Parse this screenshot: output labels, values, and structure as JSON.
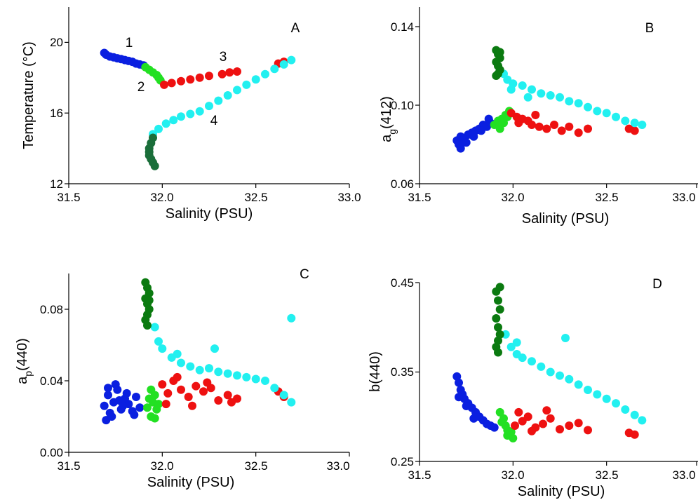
{
  "colors": {
    "blue": "#0a1fe0",
    "lightgreen": "#22e022",
    "red": "#ee1111",
    "cyan": "#22f0f0",
    "darkgreen": "#1a6e3a",
    "forest": "#0b7a10"
  },
  "chart_data": [
    {
      "type": "scatter",
      "panel_label": "A",
      "xlabel": "Salinity (PSU)",
      "ylabel": "Temperature (°C)",
      "xlim": [
        31.5,
        33.0
      ],
      "ylim": [
        12,
        22
      ],
      "xticks": [
        "31.5",
        "32.0",
        "32.5",
        "33.0"
      ],
      "yticks": [
        "12",
        "16",
        "20"
      ],
      "grid": false,
      "annotations": [
        {
          "text": "1",
          "x": 31.83,
          "y": 20.0
        },
        {
          "text": "2",
          "x": 31.88,
          "y": 17.5
        },
        {
          "text": "3",
          "x": 32.39,
          "y": 19.2
        },
        {
          "text": "4",
          "x": 32.29,
          "y": 15.5
        }
      ],
      "groups": [
        {
          "color": "blue",
          "x": [
            31.69,
            31.7,
            31.72,
            31.74,
            31.76,
            31.78,
            31.8,
            31.82,
            31.84,
            31.86,
            31.88,
            31.9
          ],
          "y": [
            19.4,
            19.3,
            19.2,
            19.15,
            19.1,
            19.05,
            19.0,
            18.95,
            18.9,
            18.8,
            18.75,
            18.7
          ]
        },
        {
          "color": "lightgreen",
          "x": [
            31.91,
            31.93,
            31.95,
            31.97,
            31.98,
            31.99
          ],
          "y": [
            18.6,
            18.45,
            18.3,
            18.15,
            18.0,
            17.85
          ]
        },
        {
          "color": "red",
          "x": [
            32.01,
            32.05,
            32.1,
            32.15,
            32.2,
            32.25,
            32.32,
            32.36,
            32.4,
            32.62,
            32.65
          ],
          "y": [
            17.6,
            17.7,
            17.8,
            17.9,
            18.0,
            18.1,
            18.2,
            18.3,
            18.35,
            18.8,
            18.9
          ]
        },
        {
          "color": "cyan",
          "x": [
            31.95,
            31.98,
            32.02,
            32.06,
            32.1,
            32.15,
            32.2,
            32.25,
            32.3,
            32.35,
            32.4,
            32.45,
            32.5,
            32.55,
            32.6,
            32.65,
            32.69
          ],
          "y": [
            14.8,
            15.1,
            15.4,
            15.6,
            15.8,
            15.95,
            16.1,
            16.4,
            16.7,
            17.0,
            17.3,
            17.6,
            17.9,
            18.2,
            18.5,
            18.75,
            19.0
          ]
        },
        {
          "color": "darkgreen",
          "x": [
            31.95,
            31.94,
            31.93,
            31.93,
            31.93,
            31.94,
            31.95,
            31.96
          ],
          "y": [
            14.6,
            14.3,
            14.0,
            13.8,
            13.6,
            13.4,
            13.2,
            13.0
          ]
        }
      ]
    },
    {
      "type": "scatter",
      "panel_label": "B",
      "xlabel": "Salinity (PSU)",
      "ylabel_main": "a",
      "ylabel_sub": "g",
      "ylabel_rest": "(412)",
      "xlim": [
        31.5,
        33.0
      ],
      "ylim": [
        0.06,
        0.15
      ],
      "xticks": [
        "31.5",
        "32.0",
        "32.5",
        "33.0"
      ],
      "yticks": [
        "0.06",
        "0.10",
        "0.14"
      ],
      "grid": false,
      "groups": [
        {
          "color": "blue",
          "x": [
            31.7,
            31.71,
            31.72,
            31.74,
            31.76,
            31.78,
            31.8,
            31.82,
            31.84,
            31.86,
            31.88,
            31.72,
            31.75,
            31.79,
            31.83,
            31.87
          ],
          "y": [
            0.082,
            0.08,
            0.084,
            0.083,
            0.085,
            0.086,
            0.087,
            0.088,
            0.09,
            0.089,
            0.091,
            0.078,
            0.081,
            0.084,
            0.087,
            0.093
          ]
        },
        {
          "color": "lightgreen",
          "x": [
            31.9,
            31.92,
            31.93,
            31.94,
            31.95,
            31.96,
            31.97,
            31.98
          ],
          "y": [
            0.09,
            0.092,
            0.088,
            0.093,
            0.091,
            0.095,
            0.094,
            0.097
          ]
        },
        {
          "color": "red",
          "x": [
            31.99,
            32.02,
            32.05,
            32.08,
            32.1,
            32.14,
            32.18,
            32.22,
            32.26,
            32.3,
            32.35,
            32.4,
            32.62,
            32.65,
            32.03,
            32.12
          ],
          "y": [
            0.096,
            0.094,
            0.093,
            0.092,
            0.09,
            0.089,
            0.088,
            0.09,
            0.087,
            0.089,
            0.086,
            0.088,
            0.088,
            0.087,
            0.091,
            0.095
          ]
        },
        {
          "color": "cyan",
          "x": [
            31.95,
            31.97,
            32.0,
            32.05,
            32.1,
            32.15,
            32.2,
            32.25,
            32.3,
            32.35,
            32.4,
            32.45,
            32.5,
            32.55,
            32.6,
            32.65,
            32.69,
            31.99,
            32.08
          ],
          "y": [
            0.116,
            0.113,
            0.111,
            0.11,
            0.108,
            0.106,
            0.105,
            0.104,
            0.102,
            0.101,
            0.099,
            0.097,
            0.096,
            0.094,
            0.092,
            0.091,
            0.09,
            0.108,
            0.104
          ]
        },
        {
          "color": "forest",
          "x": [
            31.91,
            31.92,
            31.93,
            31.91,
            31.92,
            31.93,
            31.92,
            31.93,
            31.91
          ],
          "y": [
            0.128,
            0.126,
            0.124,
            0.122,
            0.12,
            0.118,
            0.116,
            0.127,
            0.115
          ]
        }
      ]
    },
    {
      "type": "scatter",
      "panel_label": "C",
      "xlabel": "Salinity (PSU)",
      "ylabel_main": "a",
      "ylabel_sub": "p",
      "ylabel_rest": "(440)",
      "xlim": [
        31.5,
        33.0
      ],
      "ylim": [
        0.0,
        0.1
      ],
      "xticks": [
        "31.5",
        "32.0",
        "32.5",
        "33.0"
      ],
      "yticks": [
        "0.00",
        "0.04",
        "0.08"
      ],
      "grid": false,
      "groups": [
        {
          "color": "blue",
          "x": [
            31.69,
            31.7,
            31.71,
            31.72,
            31.74,
            31.76,
            31.78,
            31.8,
            31.82,
            31.84,
            31.86,
            31.88,
            31.71,
            31.73,
            31.77,
            31.81,
            31.85,
            31.75,
            31.79
          ],
          "y": [
            0.026,
            0.018,
            0.032,
            0.022,
            0.028,
            0.035,
            0.024,
            0.03,
            0.027,
            0.023,
            0.031,
            0.025,
            0.036,
            0.02,
            0.029,
            0.033,
            0.021,
            0.038,
            0.026
          ]
        },
        {
          "color": "lightgreen",
          "x": [
            31.92,
            31.93,
            31.94,
            31.95,
            31.96,
            31.97,
            31.98,
            31.94,
            31.96
          ],
          "y": [
            0.025,
            0.03,
            0.02,
            0.028,
            0.032,
            0.024,
            0.027,
            0.035,
            0.019
          ]
        },
        {
          "color": "red",
          "x": [
            32.0,
            32.03,
            32.06,
            32.1,
            32.14,
            32.18,
            32.22,
            32.26,
            32.3,
            32.35,
            32.4,
            32.62,
            32.65,
            32.02,
            32.08,
            32.16,
            32.24,
            32.37
          ],
          "y": [
            0.038,
            0.033,
            0.04,
            0.035,
            0.031,
            0.037,
            0.034,
            0.036,
            0.029,
            0.032,
            0.03,
            0.034,
            0.031,
            0.027,
            0.042,
            0.026,
            0.039,
            0.028
          ]
        },
        {
          "color": "cyan",
          "x": [
            31.96,
            31.98,
            32.0,
            32.05,
            32.1,
            32.15,
            32.2,
            32.25,
            32.3,
            32.35,
            32.4,
            32.45,
            32.5,
            32.55,
            32.6,
            32.65,
            32.69,
            32.69,
            32.28,
            32.08
          ],
          "y": [
            0.07,
            0.062,
            0.058,
            0.053,
            0.05,
            0.048,
            0.046,
            0.047,
            0.045,
            0.044,
            0.043,
            0.042,
            0.041,
            0.04,
            0.036,
            0.032,
            0.028,
            0.075,
            0.058,
            0.055
          ]
        },
        {
          "color": "forest",
          "x": [
            31.91,
            31.92,
            31.93,
            31.91,
            31.92,
            31.93,
            31.92,
            31.91,
            31.93,
            31.92
          ],
          "y": [
            0.095,
            0.092,
            0.089,
            0.086,
            0.083,
            0.08,
            0.077,
            0.074,
            0.085,
            0.071
          ]
        }
      ]
    },
    {
      "type": "scatter",
      "panel_label": "D",
      "xlabel": "Salinity (PSU)",
      "ylabel": "b(440)",
      "xlim": [
        31.5,
        33.0
      ],
      "ylim": [
        0.25,
        0.45
      ],
      "xticks": [
        "31.5",
        "32.0",
        "32.5",
        "33.0"
      ],
      "yticks": [
        "0.25",
        "0.35",
        "0.45"
      ],
      "grid": false,
      "groups": [
        {
          "color": "blue",
          "x": [
            31.7,
            31.71,
            31.72,
            31.73,
            31.74,
            31.76,
            31.78,
            31.8,
            31.82,
            31.84,
            31.86,
            31.88,
            31.9,
            31.71,
            31.75,
            31.79
          ],
          "y": [
            0.345,
            0.338,
            0.33,
            0.325,
            0.32,
            0.315,
            0.31,
            0.305,
            0.3,
            0.296,
            0.292,
            0.29,
            0.288,
            0.322,
            0.312,
            0.298
          ]
        },
        {
          "color": "lightgreen",
          "x": [
            31.93,
            31.95,
            31.96,
            31.97,
            31.98,
            31.99,
            32.0,
            31.94,
            31.97
          ],
          "y": [
            0.305,
            0.298,
            0.29,
            0.285,
            0.28,
            0.283,
            0.276,
            0.294,
            0.279
          ]
        },
        {
          "color": "red",
          "x": [
            32.01,
            32.05,
            32.08,
            32.12,
            32.16,
            32.2,
            32.25,
            32.3,
            32.35,
            32.4,
            32.62,
            32.65,
            32.03,
            32.1,
            32.18
          ],
          "y": [
            0.29,
            0.295,
            0.3,
            0.288,
            0.292,
            0.298,
            0.286,
            0.29,
            0.293,
            0.285,
            0.282,
            0.28,
            0.305,
            0.284,
            0.307
          ]
        },
        {
          "color": "cyan",
          "x": [
            31.96,
            31.99,
            32.02,
            32.05,
            32.1,
            32.15,
            32.2,
            32.25,
            32.3,
            32.35,
            32.4,
            32.45,
            32.5,
            32.55,
            32.6,
            32.65,
            32.69,
            32.28,
            32.02
          ],
          "y": [
            0.392,
            0.378,
            0.37,
            0.366,
            0.362,
            0.356,
            0.35,
            0.346,
            0.342,
            0.336,
            0.33,
            0.325,
            0.32,
            0.315,
            0.308,
            0.302,
            0.296,
            0.388,
            0.383
          ]
        },
        {
          "color": "forest",
          "x": [
            31.91,
            31.92,
            31.93,
            31.91,
            31.92,
            31.93,
            31.92,
            31.91,
            31.93,
            31.92
          ],
          "y": [
            0.44,
            0.43,
            0.42,
            0.41,
            0.4,
            0.392,
            0.385,
            0.378,
            0.445,
            0.372
          ]
        }
      ]
    }
  ]
}
